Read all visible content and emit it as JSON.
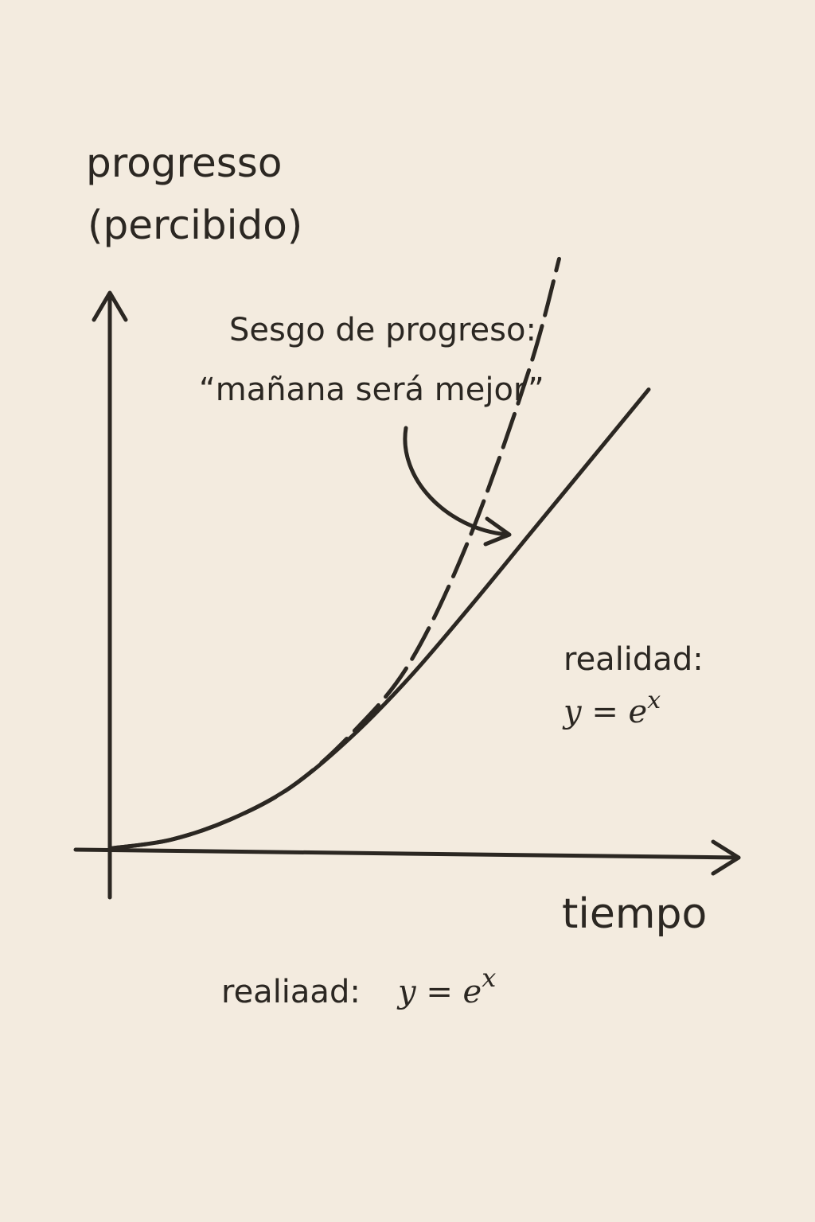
{
  "chart_data": {
    "type": "line",
    "ylabel_line1": "progresso",
    "ylabel_line2": "(percibido)",
    "xlabel": "tiempo",
    "annotation_line1": "Sesgo de progreso:",
    "annotation_line2": "“mañana será mejor”",
    "reality_label_line1": "realidad:",
    "reality_label_line2": "y = e",
    "reality_label_exp": "x",
    "bottom_label_text": "realiaad:",
    "bottom_label_formula": "y = e",
    "bottom_label_exp": "x",
    "xlim": [
      0,
      10
    ],
    "ylim": [
      0,
      10
    ],
    "series": [
      {
        "x": [
          0,
          1,
          2,
          3,
          4,
          5,
          6,
          7,
          8,
          9
        ],
        "values": [
          0.05,
          0.2,
          0.55,
          1.1,
          1.95,
          3.0,
          4.2,
          5.45,
          6.7,
          7.95
        ],
        "style": "solid"
      },
      {
        "x": [
          0,
          1,
          2,
          3,
          4,
          5,
          6,
          7,
          7.5
        ],
        "values": [
          0.05,
          0.2,
          0.55,
          1.1,
          2.0,
          3.25,
          5.4,
          8.3,
          10.2
        ],
        "style": "dashed"
      }
    ],
    "colors": {
      "ink": "#2b2722",
      "background": "#f3ebdf"
    },
    "grid": false
  }
}
